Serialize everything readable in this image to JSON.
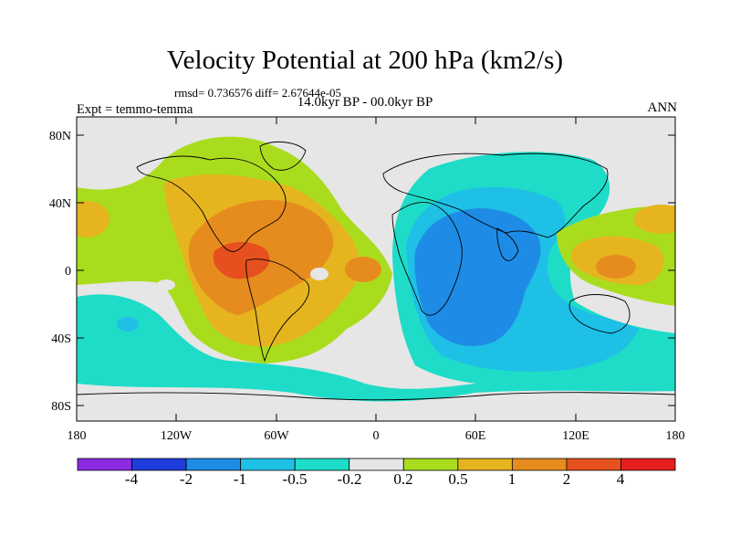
{
  "title": "Velocity Potential at 200 hPa (km2/s)",
  "stats": "rmsd= 0.736576 diff= 2.67644e-05",
  "left_label": "Expt = temmo-temma",
  "center_label": "14.0kyr BP - 00.0kyr BP",
  "right_label": "ANN",
  "lat_ticks": [
    "80N",
    "40N",
    "0",
    "40S",
    "80S"
  ],
  "lon_ticks": [
    "180",
    "120W",
    "60W",
    "0",
    "60E",
    "120E",
    "180"
  ],
  "colorbar": {
    "colors": [
      "#8a2be2",
      "#1e3cdc",
      "#1e8ce6",
      "#1ec0e6",
      "#1edcc8",
      "#e6e6e6",
      "#aadc1e",
      "#e6b41e",
      "#e68c1e",
      "#e6501e",
      "#e61e1e"
    ],
    "labels": [
      "-4",
      "-2",
      "-1",
      "-0.5",
      "-0.2",
      "0.2",
      "0.5",
      "1",
      "2",
      "4"
    ]
  }
}
